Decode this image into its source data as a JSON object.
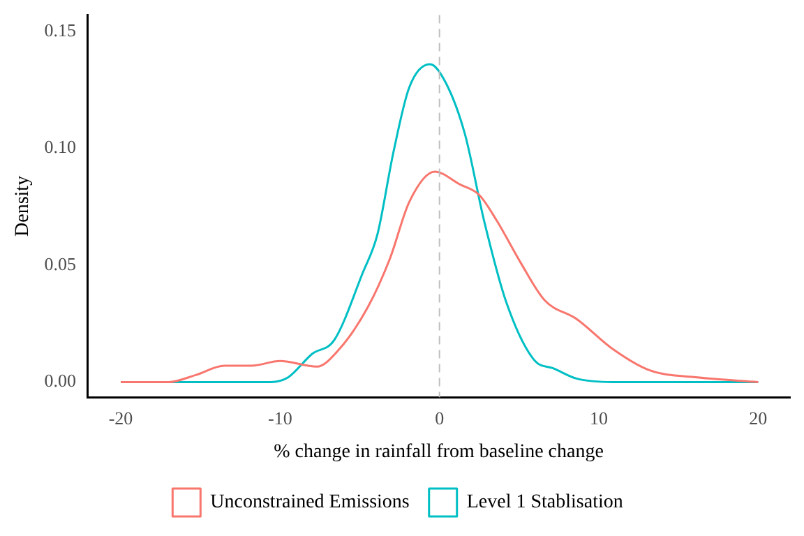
{
  "chart_data": {
    "type": "line",
    "xlabel": "% change in rainfall from baseline change",
    "ylabel": "Density",
    "xlim": [
      -22.1,
      22
    ],
    "ylim": [
      -0.0065,
      0.157
    ],
    "xticks": [
      -20,
      -10,
      0,
      10,
      20
    ],
    "yticks": [
      {
        "value": 0,
        "label": "0.00"
      },
      {
        "value": 0.05,
        "label": "0.05"
      },
      {
        "value": 0.1,
        "label": "0.10"
      },
      {
        "value": 0.15,
        "label": "0.15"
      }
    ],
    "grid": false,
    "legend": "bottom",
    "marker": "none",
    "line_style": "solid",
    "ref_lines": [
      {
        "axis": "x",
        "value": 0,
        "color": "#bebebe",
        "line_style": "dashed"
      }
    ],
    "series": [
      {
        "name": "Unconstrained Emissions",
        "color": "#f8766d",
        "x": [
          -20,
          -17,
          -15.3,
          -13.5,
          -11.8,
          -10,
          -7.7,
          -6.3,
          -4.5,
          -3.1,
          -1.9,
          -0.3,
          1.3,
          2.5,
          3.6,
          5.1,
          6.6,
          8.6,
          10.9,
          13.2,
          16.2,
          20
        ],
        "values": [
          0,
          0,
          0.003,
          0.007,
          0.007,
          0.009,
          0.0066,
          0.014,
          0.032,
          0.053,
          0.077,
          0.09,
          0.0845,
          0.08,
          0.069,
          0.051,
          0.035,
          0.027,
          0.014,
          0.005,
          0.002,
          0
        ]
      },
      {
        "name": "Level 1 Stablisation",
        "color": "#00bfc4",
        "x": [
          -20,
          -10.6,
          -9.5,
          -8,
          -6.6,
          -4.8,
          -3.9,
          -2.9,
          -1.9,
          -0.6,
          0.4,
          1.6,
          2.8,
          4.2,
          6,
          7.1,
          8.6,
          10.9,
          20
        ],
        "values": [
          0,
          0,
          0.002,
          0.012,
          0.018,
          0.047,
          0.063,
          0.098,
          0.126,
          0.136,
          0.128,
          0.106,
          0.069,
          0.034,
          0.009,
          0.006,
          0.0015,
          0,
          0
        ]
      }
    ]
  }
}
